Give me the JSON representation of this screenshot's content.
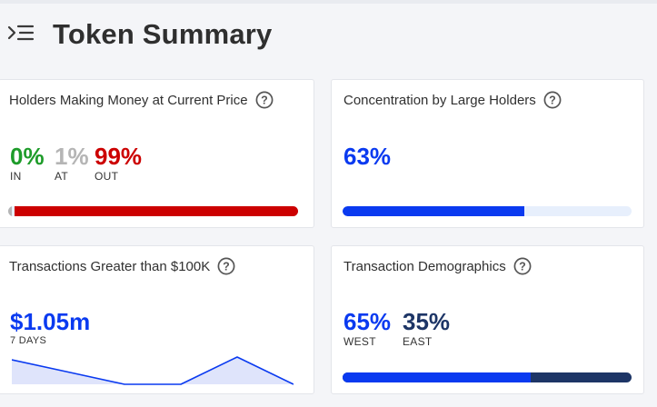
{
  "header": {
    "title": "Token Summary",
    "menu_icon": "collapse-menu-icon"
  },
  "help_icon": "question-circle-icon",
  "colors": {
    "green": "#1e9c2a",
    "gray": "#b5b5b5",
    "red": "#cc0000",
    "blue": "#0a3af0",
    "navy": "#1d3566",
    "bar_track": "#e7effc",
    "chart_fill": "#dfe4fb"
  },
  "holders": {
    "title": "Holders Making Money at Current Price",
    "in": {
      "value": "0%",
      "label": "IN",
      "fraction": 0.0
    },
    "at": {
      "value": "1%",
      "label": "AT",
      "fraction": 0.01
    },
    "out": {
      "value": "99%",
      "label": "OUT",
      "fraction": 0.99
    }
  },
  "concentration": {
    "title": "Concentration by Large Holders",
    "value": "63%",
    "fraction": 0.63
  },
  "large_tx": {
    "title": "Transactions Greater than $100K",
    "value": "$1.05m",
    "period": "7 DAYS",
    "sparkline": [
      0.9,
      0.45,
      0.0,
      0.0,
      1.0,
      0.0
    ]
  },
  "demographics": {
    "title": "Transaction Demographics",
    "west": {
      "value": "65%",
      "label": "WEST",
      "fraction": 0.65
    },
    "east": {
      "value": "35%",
      "label": "EAST",
      "fraction": 0.35
    }
  }
}
